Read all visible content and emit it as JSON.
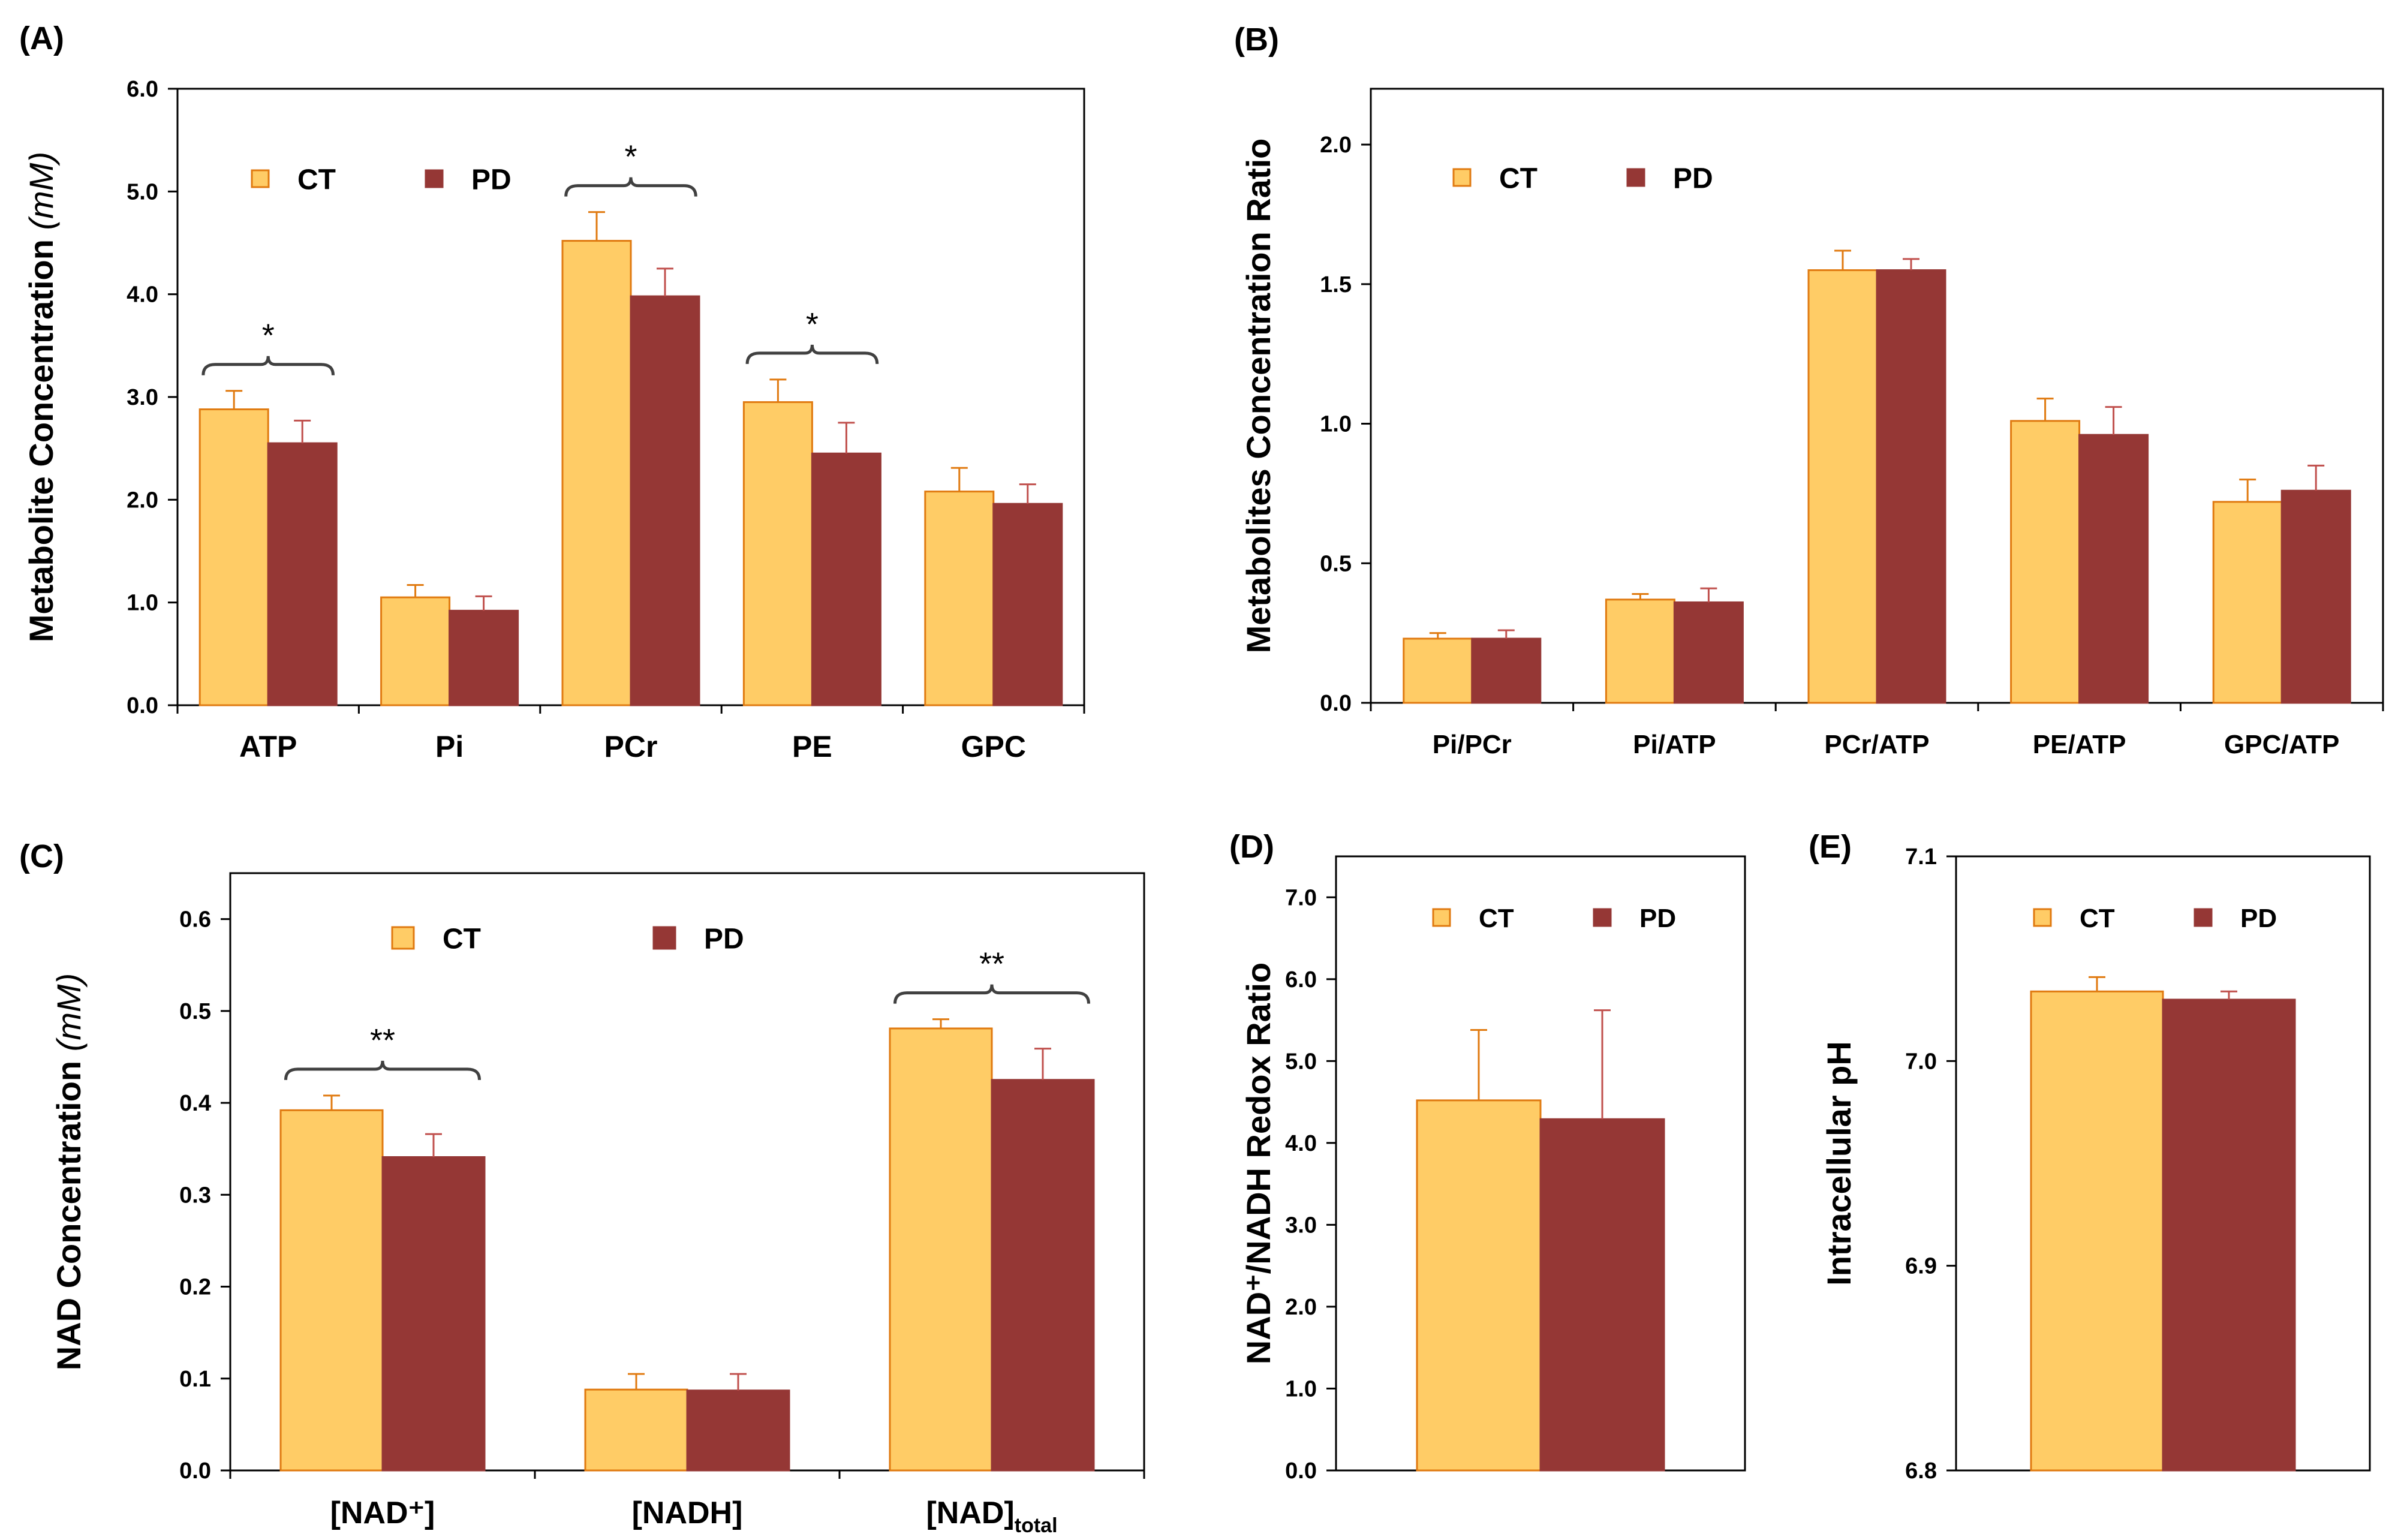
{
  "colors": {
    "ct_fill": "#FFCC66",
    "ct_stroke": "#E07A10",
    "pd_fill": "#953735",
    "pd_err": "#C0504D",
    "axis": "#000000"
  },
  "chart_data": [
    {
      "id": "A",
      "panel_label": "(A)",
      "type": "bar",
      "ylabel": "Metabolite Concentration",
      "ylabel_unit": "(mM)",
      "ylim": [
        0,
        6
      ],
      "yticks": [
        "0.0",
        "1.0",
        "2.0",
        "3.0",
        "4.0",
        "5.0",
        "6.0"
      ],
      "categories": [
        "ATP",
        "Pi",
        "PCr",
        "PE",
        "GPC"
      ],
      "series": [
        {
          "name": "CT",
          "values": [
            2.88,
            1.05,
            4.52,
            2.95,
            2.08
          ],
          "errors": [
            0.18,
            0.12,
            0.28,
            0.22,
            0.23
          ]
        },
        {
          "name": "PD",
          "values": [
            2.55,
            0.92,
            3.98,
            2.45,
            1.96
          ],
          "errors": [
            0.22,
            0.14,
            0.27,
            0.3,
            0.19
          ]
        }
      ],
      "significance": [
        {
          "category": 0,
          "label": "*"
        },
        {
          "category": 2,
          "label": "*"
        },
        {
          "category": 3,
          "label": "*"
        }
      ],
      "legend": [
        "CT",
        "PD"
      ],
      "legend_position": "top-left"
    },
    {
      "id": "B",
      "panel_label": "(B)",
      "type": "bar",
      "ylabel": "Metabolites Concentration Ratio",
      "ylabel_unit": "",
      "ylim": [
        0,
        2.2
      ],
      "yticks": [
        "0.0",
        "0.5",
        "1.0",
        "1.5",
        "2.0"
      ],
      "categories": [
        "Pi/PCr",
        "Pi/ATP",
        "PCr/ATP",
        "PE/ATP",
        "GPC/ATP"
      ],
      "series": [
        {
          "name": "CT",
          "values": [
            0.23,
            0.37,
            1.55,
            1.01,
            0.72
          ],
          "errors": [
            0.02,
            0.02,
            0.07,
            0.08,
            0.08
          ]
        },
        {
          "name": "PD",
          "values": [
            0.23,
            0.36,
            1.55,
            0.96,
            0.76
          ],
          "errors": [
            0.03,
            0.05,
            0.04,
            0.1,
            0.09
          ]
        }
      ],
      "significance": [],
      "legend": [
        "CT",
        "PD"
      ],
      "legend_position": "top-left"
    },
    {
      "id": "C",
      "panel_label": "(C)",
      "type": "bar",
      "ylabel": "NAD Concentration",
      "ylabel_unit": "(mM)",
      "ylim": [
        0,
        0.65
      ],
      "yticks": [
        "0.0",
        "0.1",
        "0.2",
        "0.3",
        "0.4",
        "0.5",
        "0.6"
      ],
      "categories": [
        "[NAD⁺]",
        "[NADH]",
        "[NAD]total"
      ],
      "series": [
        {
          "name": "CT",
          "values": [
            0.392,
            0.088,
            0.481
          ],
          "errors": [
            0.016,
            0.017,
            0.01
          ]
        },
        {
          "name": "PD",
          "values": [
            0.341,
            0.087,
            0.425
          ],
          "errors": [
            0.025,
            0.018,
            0.034
          ]
        }
      ],
      "significance": [
        {
          "category": 0,
          "label": "**"
        },
        {
          "category": 2,
          "label": "**"
        }
      ],
      "legend": [
        "CT",
        "PD"
      ],
      "legend_position": "top-center"
    },
    {
      "id": "D",
      "panel_label": "(D)",
      "type": "bar",
      "ylabel": "NAD⁺/NADH Redox Ratio",
      "ylabel_unit": "",
      "ylim": [
        0,
        7.5
      ],
      "yticks": [
        "0.0",
        "1.0",
        "2.0",
        "3.0",
        "4.0",
        "5.0",
        "6.0",
        "7.0"
      ],
      "categories": [
        ""
      ],
      "series": [
        {
          "name": "CT",
          "values": [
            4.52
          ],
          "errors": [
            0.86
          ]
        },
        {
          "name": "PD",
          "values": [
            4.29
          ],
          "errors": [
            1.33
          ]
        }
      ],
      "significance": [],
      "legend": [
        "CT",
        "PD"
      ],
      "legend_position": "top-left"
    },
    {
      "id": "E",
      "panel_label": "(E)",
      "type": "bar",
      "ylabel": "Intracellular pH",
      "ylabel_unit": "",
      "ylim": [
        6.8,
        7.1
      ],
      "yticks": [
        "6.8",
        "6.9",
        "7.0",
        "7.1"
      ],
      "categories": [
        ""
      ],
      "series": [
        {
          "name": "CT",
          "values": [
            7.034
          ],
          "errors": [
            0.007
          ]
        },
        {
          "name": "PD",
          "values": [
            7.03
          ],
          "errors": [
            0.004
          ]
        }
      ],
      "significance": [],
      "legend": [
        "CT",
        "PD"
      ],
      "legend_position": "top-left"
    }
  ]
}
